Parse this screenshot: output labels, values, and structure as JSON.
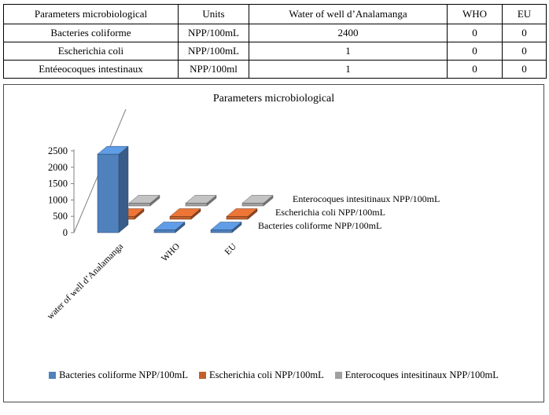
{
  "table": {
    "headers": [
      "Parameters microbiological",
      "Units",
      "Water of well d’Analamanga",
      "WHO",
      "EU"
    ],
    "rows": [
      [
        "Bacteries coliforme",
        "NPP/100mL",
        "2400",
        "0",
        "0"
      ],
      [
        "Escherichia coli",
        "NPP/100mL",
        "1",
        "0",
        "0"
      ],
      [
        "Entéeocoques intestinaux",
        "NPP/100ml",
        "1",
        "0",
        "0"
      ]
    ]
  },
  "chart_data": {
    "type": "bar",
    "style": "3d-column",
    "title": "Parameters microbiological",
    "categories": [
      "water of well d’Analamanga",
      "WHO",
      "EU"
    ],
    "series": [
      {
        "name": "Bacteries coliforme NPP/100mL",
        "color": "#4f81bd",
        "values": [
          2400,
          0,
          0
        ]
      },
      {
        "name": "Escherichia coli NPP/100mL",
        "color": "#c2602c",
        "values": [
          1,
          0,
          0
        ]
      },
      {
        "name": "Enterocoques intesitinaux NPP/100mL",
        "color": "#a0a0a0",
        "values": [
          1,
          0,
          0
        ]
      }
    ],
    "ylim": [
      0,
      2500
    ],
    "ytick_step": 500,
    "yticks": [
      0,
      500,
      1000,
      1500,
      2000,
      2500
    ],
    "legend_position": "bottom",
    "grid": false
  }
}
